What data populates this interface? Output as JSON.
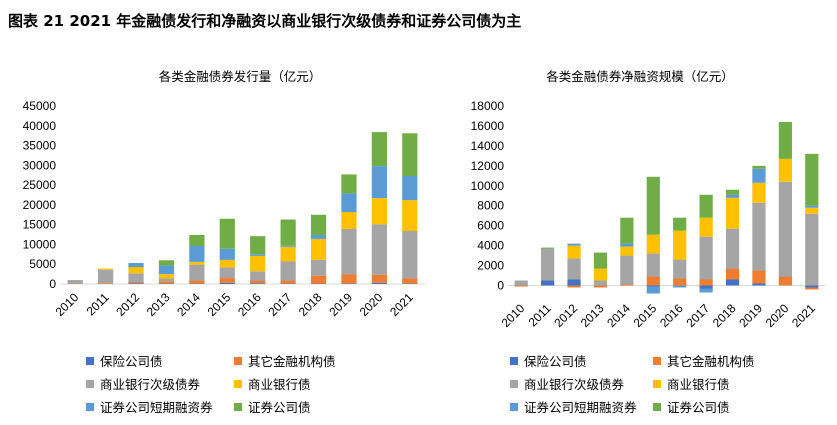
{
  "figure_title": "图表 21  2021 年金融债发行和净融资以商业银行次级债券和证券公司债为主",
  "series_names": [
    "保险公司债",
    "其它金融机构债",
    "商业银行次级债券",
    "商业银行债",
    "证券公司短期融资券",
    "证券公司债"
  ],
  "colors": [
    "#4472c4",
    "#ed7d31",
    "#a5a5a5",
    "#ffc000",
    "#5b9bd5",
    "#70ad47"
  ],
  "chart_data": [
    {
      "type": "bar",
      "stacked": true,
      "title": "各类金融债券发行量（亿元）",
      "categories": [
        "2010",
        "2011",
        "2012",
        "2013",
        "2014",
        "2015",
        "2016",
        "2017",
        "2018",
        "2019",
        "2020",
        "2021"
      ],
      "ylim": [
        0,
        45000
      ],
      "yticks": [
        0,
        5000,
        10000,
        15000,
        20000,
        25000,
        30000,
        35000,
        40000,
        45000
      ],
      "legend_position": "bottom",
      "series": [
        {
          "name": "保险公司债",
          "values": [
            0,
            0,
            200,
            100,
            100,
            300,
            200,
            100,
            100,
            100,
            300,
            100
          ]
        },
        {
          "name": "其它金融机构债",
          "values": [
            100,
            200,
            300,
            600,
            800,
            1200,
            700,
            800,
            2000,
            2300,
            2000,
            1300
          ]
        },
        {
          "name": "商业银行次级债券",
          "values": [
            900,
            3400,
            2200,
            700,
            4000,
            2700,
            2300,
            4800,
            4000,
            11500,
            12800,
            12000
          ]
        },
        {
          "name": "商业银行债",
          "values": [
            0,
            300,
            1600,
            1100,
            700,
            1900,
            3900,
            3700,
            5300,
            4300,
            6600,
            7800
          ]
        },
        {
          "name": "证券公司短期融资券",
          "values": [
            0,
            0,
            1000,
            2200,
            4000,
            2800,
            400,
            300,
            1000,
            4700,
            8100,
            6100
          ]
        },
        {
          "name": "证券公司债",
          "values": [
            0,
            0,
            0,
            1300,
            2800,
            7600,
            4600,
            6600,
            5100,
            4800,
            8600,
            10800
          ]
        }
      ]
    },
    {
      "type": "bar",
      "stacked": true,
      "title": "各类金融债券净融资规模（亿元）",
      "categories": [
        "2010",
        "2011",
        "2012",
        "2013",
        "2014",
        "2015",
        "2016",
        "2017",
        "2018",
        "2019",
        "2020",
        "2021"
      ],
      "ylim": [
        -1000,
        18000
      ],
      "yticks": [
        0,
        2000,
        4000,
        6000,
        8000,
        10000,
        12000,
        14000,
        16000,
        18000
      ],
      "legend_position": "bottom",
      "series": [
        {
          "name": "保险公司债",
          "values": [
            0,
            500,
            600,
            0,
            0,
            -100,
            0,
            -300,
            600,
            200,
            0,
            -200
          ]
        },
        {
          "name": "其它金融机构债",
          "values": [
            -100,
            0,
            -200,
            -200,
            100,
            900,
            700,
            600,
            1100,
            1300,
            900,
            -200
          ]
        },
        {
          "name": "商业银行次级债券",
          "values": [
            500,
            3200,
            2100,
            500,
            2900,
            2300,
            1900,
            4300,
            4000,
            6800,
            9500,
            7200
          ]
        },
        {
          "name": "商业银行债",
          "values": [
            0,
            0,
            1300,
            1200,
            900,
            1900,
            2900,
            1900,
            3100,
            2000,
            2300,
            600
          ]
        },
        {
          "name": "证券公司短期融资券",
          "values": [
            0,
            0,
            200,
            0,
            300,
            -700,
            -200,
            -400,
            300,
            1400,
            0,
            200
          ]
        },
        {
          "name": "证券公司债",
          "values": [
            0,
            100,
            0,
            1600,
            2600,
            5800,
            1300,
            2300,
            500,
            300,
            3700,
            5200
          ]
        }
      ]
    }
  ]
}
